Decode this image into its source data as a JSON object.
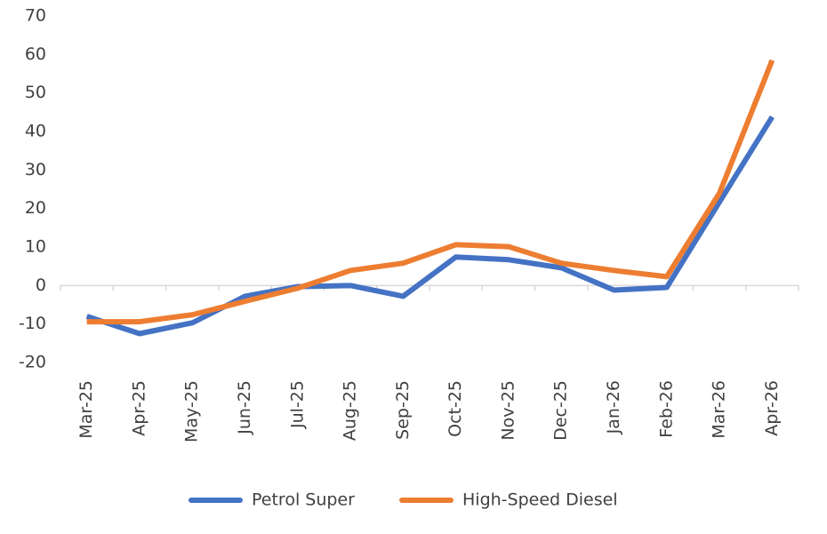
{
  "chart_data": {
    "type": "line",
    "categories": [
      "Mar-25",
      "Apr-25",
      "May-25",
      "Jun-25",
      "Jul-25",
      "Aug-25",
      "Sep-25",
      "Oct-25",
      "Nov-25",
      "Dec-25",
      "Jan-26",
      "Feb-26",
      "Mar-26",
      "Apr-26"
    ],
    "series": [
      {
        "name": "Petrol Super",
        "color": "#4472c4",
        "values": [
          -8,
          -12.5,
          -9.7,
          -2.8,
          -0.3,
          0,
          -2.8,
          7.4,
          6.7,
          4.6,
          -1.2,
          -0.5,
          21.7,
          43.8
        ]
      },
      {
        "name": "High-Speed Diesel",
        "color": "#ed7d31",
        "values": [
          -9.4,
          -9.4,
          -7.6,
          -4.1,
          -0.7,
          3.9,
          5.8,
          10.6,
          10.1,
          5.8,
          3.9,
          2.3,
          24,
          58.5
        ]
      }
    ],
    "ylim": [
      -20,
      70
    ],
    "yticks": [
      -20,
      -10,
      0,
      10,
      20,
      30,
      40,
      50,
      60,
      70
    ],
    "grid": false,
    "legend": "bottom"
  }
}
